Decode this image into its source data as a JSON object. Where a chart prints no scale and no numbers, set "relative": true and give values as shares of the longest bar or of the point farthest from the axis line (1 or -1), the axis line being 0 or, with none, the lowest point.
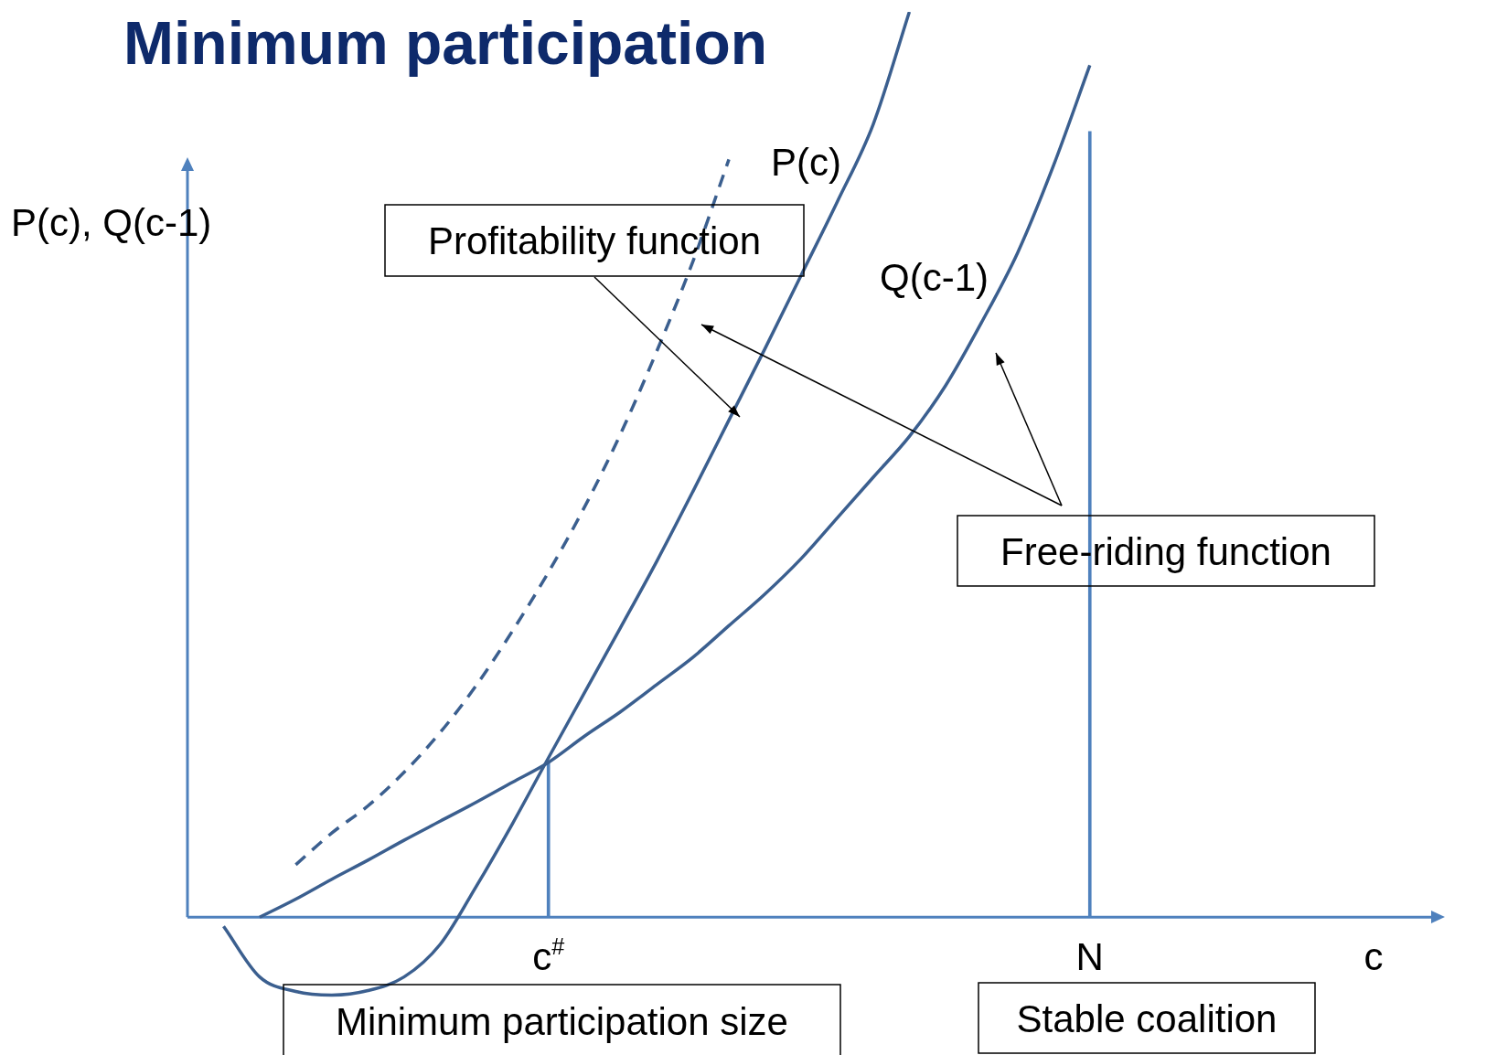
{
  "chart_data": {
    "type": "line",
    "title": "Minimum participation",
    "xlabel": "c",
    "ylabel": "P(c), Q(c-1)",
    "relative": true,
    "legend": false,
    "marker": "none",
    "categories": [
      null,
      null,
      null,
      null,
      null,
      null,
      null,
      null,
      null,
      null,
      "c$^{#}$",
      null,
      null,
      null,
      null,
      null,
      null,
      null,
      null,
      null,
      null,
      null,
      null,
      null,
      null,
      "N",
      null,
      null,
      null,
      null,
      null,
      null,
      null,
      null,
      null
    ],
    "series": [
      {
        "color": "#3b5f8f",
        "line_style": "dashed",
        "values": [
          null,
          null,
          null,
          0.058,
          0.093,
          0.123,
          0.16,
          0.204,
          0.256,
          0.316,
          0.381,
          0.453,
          0.534,
          0.625,
          0.724,
          0.837,
          null,
          null,
          null,
          null,
          null,
          null,
          null,
          null,
          null,
          null,
          null,
          null,
          null,
          null,
          null,
          null,
          null,
          null,
          null
        ]
      },
      {
        "name": "P(c)",
        "color": "#3b5f8f",
        "line_style": "solid",
        "values": [
          null,
          -0.01,
          -0.066,
          -0.082,
          -0.086,
          -0.081,
          -0.066,
          -0.03,
          0.034,
          0.103,
          0.176,
          0.248,
          0.32,
          0.393,
          0.47,
          0.549,
          0.628,
          0.709,
          0.79,
          0.876,
          1.0,
          null,
          null,
          null,
          null,
          null,
          null,
          null,
          null,
          null,
          null,
          null,
          null,
          null,
          null
        ]
      },
      {
        "name": "Q(c-1)",
        "color": "#3b5f8f",
        "line_style": "solid",
        "values": [
          null,
          null,
          0,
          0.02,
          0.042,
          0.063,
          0.085,
          0.106,
          0.127,
          0.149,
          0.171,
          0.2,
          0.227,
          0.257,
          0.287,
          0.322,
          0.357,
          0.396,
          0.441,
          0.486,
          0.531,
          0.587,
          0.657,
          0.734,
          0.831,
          0.941,
          null,
          null,
          null,
          null,
          null,
          null,
          null,
          null,
          null
        ]
      },
      {
        "type": "bar",
        "color": "#4f81bd",
        "values": [
          null,
          null,
          null,
          null,
          null,
          null,
          null,
          null,
          null,
          null,
          0.171,
          null,
          null,
          null,
          null,
          null,
          null,
          null,
          null,
          null,
          null,
          null,
          null,
          null,
          null,
          null,
          null,
          null,
          null,
          null,
          null,
          null,
          null,
          null,
          null
        ]
      },
      {
        "type": "bar",
        "color": "#4f81bd",
        "values": [
          null,
          null,
          null,
          null,
          null,
          null,
          null,
          null,
          null,
          null,
          null,
          null,
          null,
          null,
          null,
          null,
          null,
          null,
          null,
          null,
          null,
          null,
          null,
          null,
          null,
          0.868,
          null,
          null,
          null,
          null,
          null,
          null,
          null,
          null,
          null
        ]
      }
    ],
    "annotations": [
      "Profitability function",
      "Free-riding function",
      "Minimum participation size",
      "Stable coalition"
    ]
  }
}
